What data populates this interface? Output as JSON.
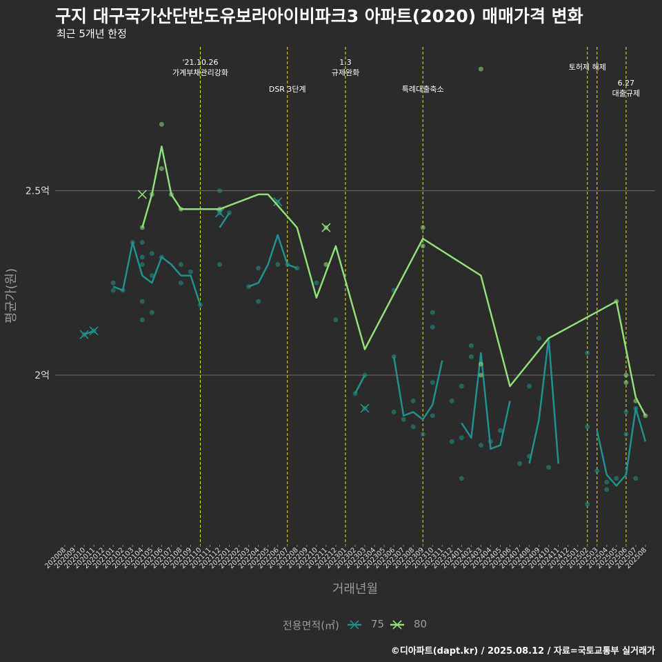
{
  "title": "구지 대구국가산단반도유보라아이비파크3 아파트(2020) 매매가격 변화",
  "subtitle": "최근 5개년 한정",
  "caption": "©디아파트(dapt.kr) / 2025.08.12 / 자료=국토교통부 실거래가",
  "legend": {
    "title": "전용면적(㎡)",
    "items": [
      "75",
      "80"
    ]
  },
  "colors": {
    "s75": "#21908c",
    "s80": "#90e07a",
    "event": "#e8e820",
    "grid": "#6a6a6a",
    "bg": "#2b2b2b"
  },
  "chart_data": {
    "type": "line",
    "xlabel": "거래년월",
    "ylabel": "평균가(원)",
    "x_categories": [
      "202008",
      "202009",
      "202010",
      "202011",
      "202012",
      "202101",
      "202102",
      "202103",
      "202104",
      "202105",
      "202106",
      "202107",
      "202108",
      "202109",
      "202110",
      "202111",
      "202112",
      "202201",
      "202202",
      "202203",
      "202204",
      "202205",
      "202206",
      "202207",
      "202208",
      "202209",
      "202210",
      "202211",
      "202212",
      "202301",
      "202302",
      "202303",
      "202304",
      "202305",
      "202306",
      "202307",
      "202308",
      "202309",
      "202310",
      "202311",
      "202312",
      "202401",
      "202402",
      "202403",
      "202404",
      "202405",
      "202406",
      "202407",
      "202408",
      "202409",
      "202410",
      "202411",
      "202412",
      "202501",
      "202502",
      "202503",
      "202504",
      "202505",
      "202506",
      "202507",
      "202508"
    ],
    "y_ticks": [
      {
        "value": 2.0,
        "label": "2억"
      },
      {
        "value": 2.5,
        "label": "2.5억"
      }
    ],
    "ylim": [
      1.54,
      2.89
    ],
    "series": [
      {
        "name": "75",
        "segments": [
          [
            [
              "202010",
              2.11
            ],
            [
              "202011",
              2.12
            ]
          ],
          [
            [
              "202101",
              2.24
            ],
            [
              "202102",
              2.23
            ],
            [
              "202103",
              2.36
            ],
            [
              "202104",
              2.27
            ],
            [
              "202105",
              2.25
            ],
            [
              "202106",
              2.32
            ],
            [
              "202107",
              2.3
            ],
            [
              "202108",
              2.27
            ],
            [
              "202109",
              2.27
            ],
            [
              "202110",
              2.19
            ]
          ],
          [
            [
              "202112",
              2.4
            ],
            [
              "202201",
              2.44
            ]
          ],
          [
            [
              "202203",
              2.24
            ],
            [
              "202204",
              2.25
            ],
            [
              "202205",
              2.3
            ],
            [
              "202206",
              2.38
            ],
            [
              "202207",
              2.3
            ],
            [
              "202208",
              2.29
            ]
          ],
          [
            [
              "202210",
              2.25
            ]
          ],
          [
            [
              "202302",
              1.95
            ],
            [
              "202303",
              2.0
            ]
          ],
          [
            [
              "202306",
              2.05
            ],
            [
              "202307",
              1.89
            ],
            [
              "202308",
              1.9
            ],
            [
              "202309",
              1.88
            ],
            [
              "202310",
              1.92
            ],
            [
              "202311",
              2.04
            ]
          ],
          [
            [
              "202401",
              1.87
            ],
            [
              "202402",
              1.83
            ],
            [
              "202403",
              2.06
            ],
            [
              "202404",
              1.8
            ],
            [
              "202405",
              1.81
            ],
            [
              "202406",
              1.93
            ]
          ],
          [
            [
              "202408",
              1.76
            ],
            [
              "202409",
              1.88
            ],
            [
              "202410",
              2.1
            ],
            [
              "202411",
              1.76
            ]
          ],
          [
            [
              "202503",
              1.85
            ],
            [
              "202504",
              1.73
            ],
            [
              "202505",
              1.7
            ],
            [
              "202506",
              1.73
            ],
            [
              "202507",
              1.91
            ],
            [
              "202508",
              1.82
            ]
          ]
        ],
        "points": [
          [
            "202010",
            2.11
          ],
          [
            "202011",
            2.12
          ],
          [
            "202101",
            2.25
          ],
          [
            "202101",
            2.23
          ],
          [
            "202102",
            2.23
          ],
          [
            "202103",
            2.36
          ],
          [
            "202104",
            2.36
          ],
          [
            "202104",
            2.32
          ],
          [
            "202104",
            2.3
          ],
          [
            "202104",
            2.2
          ],
          [
            "202104",
            2.15
          ],
          [
            "202105",
            2.33
          ],
          [
            "202105",
            2.27
          ],
          [
            "202105",
            2.17
          ],
          [
            "202106",
            2.32
          ],
          [
            "202108",
            2.3
          ],
          [
            "202108",
            2.25
          ],
          [
            "202109",
            2.28
          ],
          [
            "202110",
            2.19
          ],
          [
            "202112",
            2.5
          ],
          [
            "202112",
            2.44
          ],
          [
            "202112",
            2.3
          ],
          [
            "202201",
            2.44
          ],
          [
            "202203",
            2.24
          ],
          [
            "202204",
            2.29
          ],
          [
            "202204",
            2.2
          ],
          [
            "202206",
            2.47
          ],
          [
            "202206",
            2.3
          ],
          [
            "202207",
            2.3
          ],
          [
            "202208",
            2.29
          ],
          [
            "202210",
            2.25
          ],
          [
            "202212",
            2.15
          ],
          [
            "202302",
            1.95
          ],
          [
            "202303",
            2.0
          ],
          [
            "202303",
            1.91
          ],
          [
            "202306",
            2.23
          ],
          [
            "202306",
            2.05
          ],
          [
            "202306",
            1.9
          ],
          [
            "202307",
            1.88
          ],
          [
            "202308",
            1.93
          ],
          [
            "202308",
            1.86
          ],
          [
            "202309",
            1.84
          ],
          [
            "202310",
            2.17
          ],
          [
            "202310",
            2.13
          ],
          [
            "202310",
            1.98
          ],
          [
            "202310",
            1.89
          ],
          [
            "202312",
            1.93
          ],
          [
            "202312",
            1.82
          ],
          [
            "202401",
            1.97
          ],
          [
            "202401",
            1.83
          ],
          [
            "202401",
            1.72
          ],
          [
            "202402",
            2.08
          ],
          [
            "202402",
            2.05
          ],
          [
            "202403",
            1.81
          ],
          [
            "202404",
            1.82
          ],
          [
            "202405",
            1.85
          ],
          [
            "202407",
            1.76
          ],
          [
            "202408",
            1.97
          ],
          [
            "202408",
            1.78
          ],
          [
            "202409",
            2.1
          ],
          [
            "202410",
            1.75
          ],
          [
            "202502",
            2.06
          ],
          [
            "202502",
            1.86
          ],
          [
            "202502",
            1.65
          ],
          [
            "202503",
            1.74
          ],
          [
            "202504",
            1.71
          ],
          [
            "202504",
            1.69
          ],
          [
            "202505",
            1.72
          ],
          [
            "202506",
            1.84
          ],
          [
            "202506",
            1.9
          ],
          [
            "202507",
            1.91
          ],
          [
            "202507",
            1.72
          ]
        ],
        "cancelled": [
          [
            "202010",
            2.11
          ],
          [
            "202011",
            2.12
          ],
          [
            "202112",
            2.44
          ],
          [
            "202206",
            2.47
          ],
          [
            "202303",
            1.91
          ]
        ]
      },
      {
        "name": "80",
        "segments": [
          [
            [
              "202104",
              2.4
            ],
            [
              "202105",
              2.49
            ],
            [
              "202106",
              2.62
            ],
            [
              "202107",
              2.49
            ],
            [
              "202108",
              2.45
            ],
            [
              "202112",
              2.45
            ],
            [
              "202204",
              2.49
            ],
            [
              "202205",
              2.49
            ],
            [
              "202208",
              2.4
            ],
            [
              "202210",
              2.21
            ],
            [
              "202212",
              2.35
            ],
            [
              "202303",
              2.07
            ],
            [
              "202309",
              2.37
            ],
            [
              "202403",
              2.27
            ],
            [
              "202406",
              1.97
            ],
            [
              "202410",
              2.1
            ],
            [
              "202505",
              2.2
            ],
            [
              "202507",
              1.94
            ],
            [
              "202508",
              1.89
            ]
          ]
        ],
        "points": [
          [
            "202104",
            2.4
          ],
          [
            "202105",
            2.49
          ],
          [
            "202106",
            2.68
          ],
          [
            "202106",
            2.56
          ],
          [
            "202107",
            2.49
          ],
          [
            "202108",
            2.45
          ],
          [
            "202112",
            2.45
          ],
          [
            "202211",
            2.4
          ],
          [
            "202211",
            2.3
          ],
          [
            "202309",
            2.4
          ],
          [
            "202309",
            2.35
          ],
          [
            "202403",
            2.03
          ],
          [
            "202403",
            2.0
          ],
          [
            "202505",
            2.2
          ],
          [
            "202506",
            2.0
          ],
          [
            "202506",
            1.98
          ],
          [
            "202507",
            1.93
          ],
          [
            "202508",
            1.89
          ]
        ],
        "cancelled": [
          [
            "202104",
            2.49
          ],
          [
            "202211",
            2.4
          ]
        ],
        "outliers": [
          [
            "202403",
            2.83
          ]
        ]
      }
    ],
    "events": [
      {
        "x": "202110",
        "label": "'21.10.26\n가계부채관리강화",
        "row": 0
      },
      {
        "x": "202207",
        "label": "DSR 3단계",
        "row": 2
      },
      {
        "x": "202301",
        "label": "1.3\n규제완화",
        "row": 0
      },
      {
        "x": "202309",
        "label": "특례대출축소",
        "row": 2
      },
      {
        "x": "202502",
        "label": "토허제 해제",
        "row": 1
      },
      {
        "x": "202503",
        "label": "",
        "row": 1
      },
      {
        "x": "202506",
        "label": "6.27\n대출규제",
        "row": 3
      }
    ]
  }
}
